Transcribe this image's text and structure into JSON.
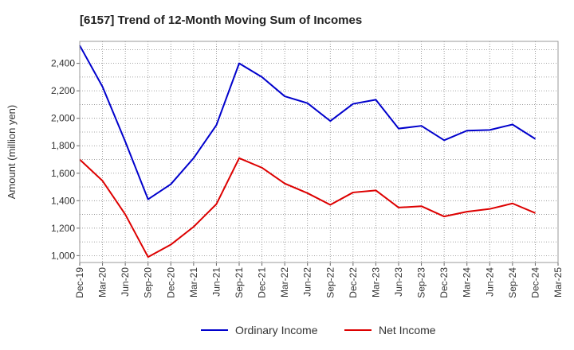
{
  "chart_data": {
    "type": "line",
    "title": "[6157]  Trend of 12-Month Moving Sum of Incomes",
    "xlabel": "",
    "ylabel": "Amount (million yen)",
    "ylim": [
      950,
      2560
    ],
    "yticks": [
      1000,
      1200,
      1400,
      1600,
      1800,
      2000,
      2200,
      2400
    ],
    "ytick_labels": [
      "1,000",
      "1,200",
      "1,400",
      "1,600",
      "1,800",
      "2,000",
      "2,200",
      "2,400"
    ],
    "categories": [
      "Dec-19",
      "Mar-20",
      "Jun-20",
      "Sep-20",
      "Dec-20",
      "Mar-21",
      "Jun-21",
      "Sep-21",
      "Dec-21",
      "Mar-22",
      "Jun-22",
      "Sep-22",
      "Dec-22",
      "Mar-23",
      "Jun-23",
      "Sep-23",
      "Dec-23",
      "Mar-24",
      "Jun-24",
      "Sep-24",
      "Dec-24",
      "Mar-25"
    ],
    "grid": true,
    "legend_position": "bottom-center",
    "series": [
      {
        "name": "Ordinary Income",
        "color": "#0000cc",
        "values": [
          2530,
          2230,
          1830,
          1410,
          1520,
          1710,
          1950,
          2400,
          2300,
          2160,
          2110,
          1980,
          2105,
          2135,
          1925,
          1945,
          1840,
          1910,
          1915,
          1955,
          1850,
          null
        ]
      },
      {
        "name": "Net Income",
        "color": "#dd0000",
        "values": [
          1700,
          1545,
          1300,
          990,
          1080,
          1210,
          1375,
          1710,
          1640,
          1525,
          1455,
          1370,
          1460,
          1475,
          1350,
          1360,
          1285,
          1320,
          1340,
          1380,
          1310,
          null
        ]
      }
    ]
  }
}
